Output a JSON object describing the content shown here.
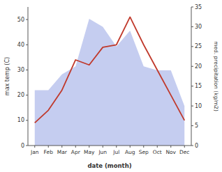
{
  "chart_data": {
    "type": "line",
    "xlabel": "date (month)",
    "ylabel": "max temp (C)",
    "y2label": "med. precipitation (kg/m2)",
    "categories": [
      "Jan",
      "Feb",
      "Mar",
      "Apr",
      "May",
      "Jun",
      "Jul",
      "Aug",
      "Sep",
      "Oct",
      "Nov",
      "Dec"
    ],
    "series": [
      {
        "type": "area",
        "axis": "y2",
        "color": "#c5cdf0",
        "values": [
          14,
          14,
          18,
          20,
          32,
          30,
          25,
          29,
          20,
          19,
          19,
          10
        ]
      },
      {
        "type": "line",
        "color": "#c0392b",
        "values": [
          9,
          14,
          22,
          34,
          32,
          39,
          40,
          51,
          40,
          30,
          20,
          10
        ]
      }
    ],
    "ylim": [
      0,
      55
    ],
    "yticks": [
      0,
      10,
      20,
      30,
      40,
      50
    ],
    "y2lim": [
      0,
      35
    ],
    "y2ticks": [
      0,
      5,
      10,
      15,
      20,
      25,
      30,
      35
    ]
  }
}
